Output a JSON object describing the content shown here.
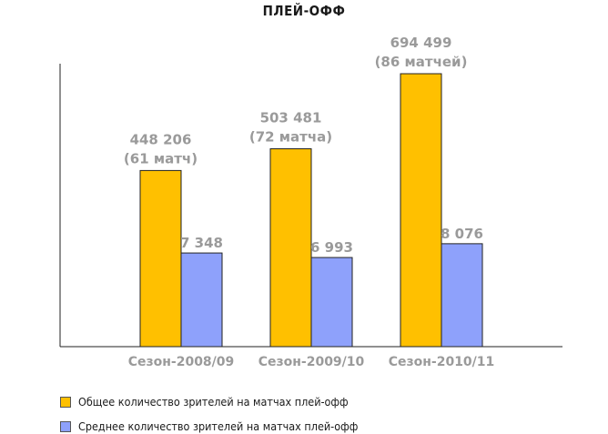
{
  "chart_data": {
    "type": "bar",
    "title": "ПЛЕЙ-ОФФ",
    "categories": [
      "Сезон-2008/09",
      "Сезон-2009/10",
      "Сезон-2010/11"
    ],
    "series": [
      {
        "name": "Общее количество зрителей на матчах плей-офф",
        "color": "#ffc000",
        "values": [
          448206,
          503481,
          694499
        ],
        "labels": [
          "448 206",
          "503 481",
          "694 499"
        ],
        "sublabels": [
          "(61 матч)",
          "(72 матча)",
          "(86 матчей)"
        ],
        "scale_max": 720000
      },
      {
        "name": "Среднее количество зрителей на матчах плей-офф",
        "color": "#8ea1fb",
        "values": [
          7348,
          6993,
          8076
        ],
        "labels": [
          "7 348",
          "6 993",
          "8 076"
        ],
        "scale_max": 22200
      }
    ],
    "grid": false,
    "legend_position": "bottom-left"
  }
}
